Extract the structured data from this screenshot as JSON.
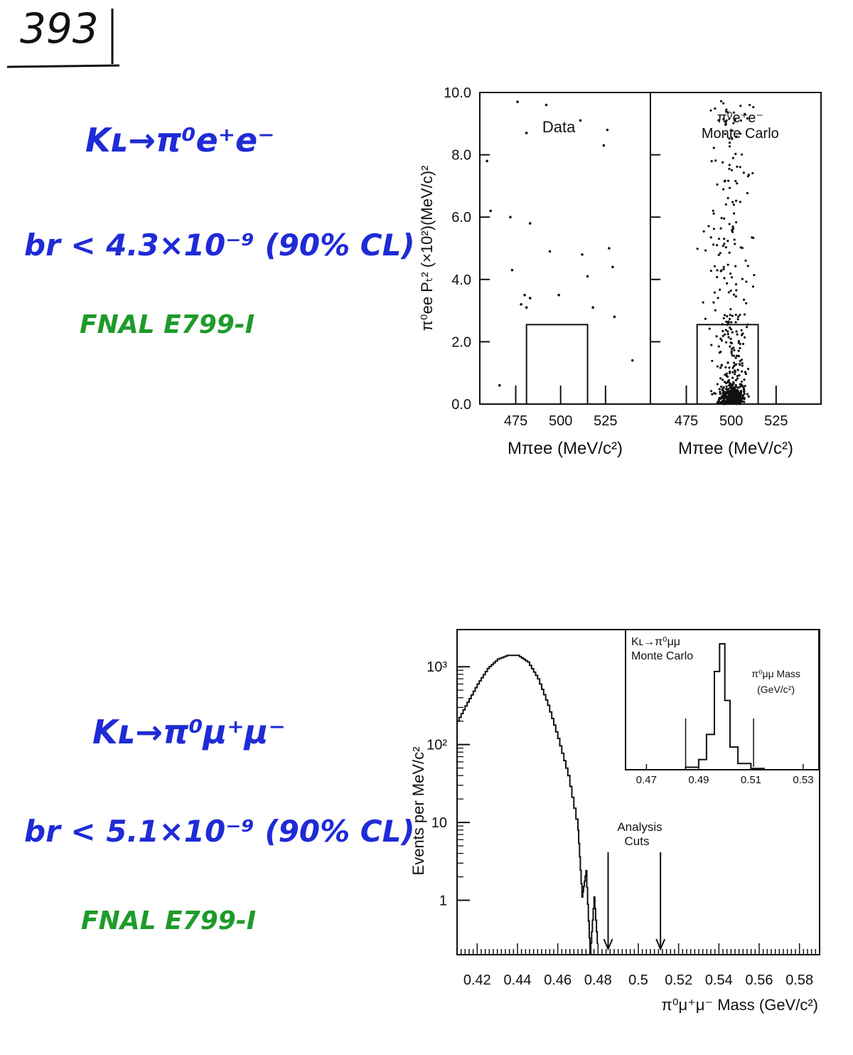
{
  "page_number": "393",
  "top": {
    "decay": "Kʟ→π⁰e⁺e⁻",
    "branching": "br < 4.3×10⁻⁹ (90% CL)",
    "experiment": "FNAL E799-I"
  },
  "bottom": {
    "decay": "Kʟ→π⁰μ⁺μ⁻",
    "branching": "br < 5.1×10⁻⁹ (90% CL)",
    "experiment": "FNAL E799-I"
  },
  "chart_data": [
    {
      "type": "scatter",
      "panels": [
        {
          "label": "Data",
          "xlabel": "Mπee (MeV/c²)",
          "x_ticks": [
            "475",
            "500",
            "525"
          ],
          "signal_box": {
            "x": [
              481,
              515
            ],
            "y": [
              0,
              2.55
            ]
          },
          "points": [
            [
              476,
              9.7
            ],
            [
              492,
              9.6
            ],
            [
              511,
              9.1
            ],
            [
              481,
              8.7
            ],
            [
              526,
              8.8
            ],
            [
              524,
              8.3
            ],
            [
              459,
              7.8
            ],
            [
              472,
              6.0
            ],
            [
              461,
              6.2
            ],
            [
              483,
              5.8
            ],
            [
              494,
              4.9
            ],
            [
              512,
              4.8
            ],
            [
              527,
              5.0
            ],
            [
              529,
              4.4
            ],
            [
              515,
              4.1
            ],
            [
              480,
              3.5
            ],
            [
              483,
              3.4
            ],
            [
              499,
              3.5
            ],
            [
              478,
              3.2
            ],
            [
              481,
              3.1
            ],
            [
              518,
              3.1
            ],
            [
              530,
              2.8
            ],
            [
              540,
              1.4
            ],
            [
              466,
              0.6
            ],
            [
              473,
              4.3
            ]
          ]
        },
        {
          "label": "π⁰e⁺e⁻ Monte Carlo",
          "xlabel": "Mπee (MeV/c²)",
          "x_ticks": [
            "475",
            "500",
            "525"
          ],
          "signal_box": {
            "x": [
              481,
              515
            ],
            "y": [
              0,
              2.55
            ]
          },
          "note": "dense simulated distribution concentrated near M=500 MeV/c², Pₜ² below 1.0"
        }
      ],
      "ylabel": "π⁰ee Pₜ² (×10²)(MeV/c)²",
      "y_ticks": [
        "0.0",
        "2.0",
        "4.0",
        "6.0",
        "8.0",
        "10.0"
      ],
      "ylim": [
        0,
        10
      ],
      "xlim": [
        455,
        550
      ]
    },
    {
      "type": "line",
      "title": "",
      "xlabel": "π⁰μ⁺μ⁻ Mass (GeV/c²)",
      "ylabel": "Events per MeV/c²",
      "y_scale": "log",
      "x_ticks": [
        "0.42",
        "0.44",
        "0.46",
        "0.48",
        "0.5",
        "0.52",
        "0.54",
        "0.56",
        "0.58"
      ],
      "y_ticks": [
        "1",
        "10",
        "10²",
        "10³"
      ],
      "xlim": [
        0.41,
        0.59
      ],
      "ylim": [
        0.2,
        3000
      ],
      "x": [
        0.41,
        0.415,
        0.42,
        0.425,
        0.43,
        0.435,
        0.44,
        0.445,
        0.45,
        0.455,
        0.46,
        0.465,
        0.47,
        0.472,
        0.474,
        0.476,
        0.478,
        0.48
      ],
      "y": [
        200,
        350,
        600,
        950,
        1250,
        1400,
        1400,
        1150,
        700,
        320,
        120,
        40,
        8,
        1.1,
        2.4,
        0.2,
        1.1,
        0.2
      ],
      "annotation": "Analysis Cuts",
      "cuts": [
        0.485,
        0.511
      ],
      "inset": {
        "title": "Kʟ→π⁰μμ Monte Carlo",
        "label": "π⁰μμ Mass (GeV/c²)",
        "x_ticks": [
          "0.47",
          "0.49",
          "0.51",
          "0.53"
        ],
        "x": [
          0.48,
          0.485,
          0.49,
          0.493,
          0.496,
          0.498,
          0.5,
          0.502,
          0.505,
          0.51,
          0.515
        ],
        "y": [
          0.0,
          0.02,
          0.08,
          0.28,
          0.78,
          1.0,
          0.55,
          0.18,
          0.05,
          0.01,
          0.0
        ],
        "cuts": [
          0.485,
          0.511
        ]
      }
    }
  ]
}
